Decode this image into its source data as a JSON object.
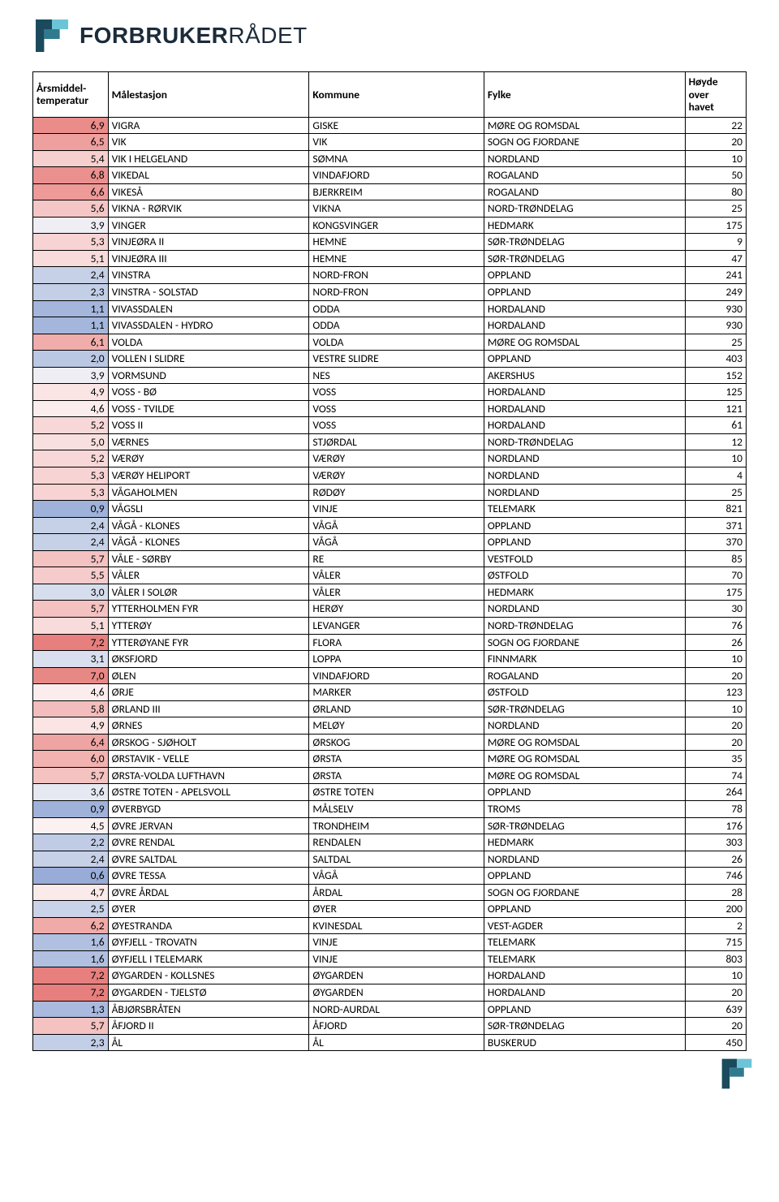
{
  "brand": {
    "name_bold": "FORBRUKER",
    "name_thin": "RÅDET",
    "mark_colors": {
      "dark": "#1b4a5c",
      "mid": "#2f7a8f",
      "light": "#6cc5d6"
    }
  },
  "table": {
    "headers": {
      "temp": "Årsmiddel-\ntemperatur",
      "station": "Målestasjon",
      "kommune": "Kommune",
      "fylke": "Fylke",
      "hoyde": "Høyde\nover\nhavet"
    },
    "rows": [
      {
        "temp": "6,9",
        "color": "#e98c8a",
        "station": "VIGRA",
        "kommune": "GISKE",
        "fylke": "MØRE OG ROMSDAL",
        "hoyde": "22"
      },
      {
        "temp": "6,5",
        "color": "#eea09e",
        "station": "VIK",
        "kommune": "VIK",
        "fylke": "SOGN OG FJORDANE",
        "hoyde": "20"
      },
      {
        "temp": "5,4",
        "color": "#f6cfcf",
        "station": "VIK I HELGELAND",
        "kommune": "SØMNA",
        "fylke": "NORDLAND",
        "hoyde": "10"
      },
      {
        "temp": "6,8",
        "color": "#ea918f",
        "station": "VIKEDAL",
        "kommune": "VINDAFJORD",
        "fylke": "ROGALAND",
        "hoyde": "50"
      },
      {
        "temp": "6,6",
        "color": "#ed9a98",
        "station": "VIKESÅ",
        "kommune": "BJERKREIM",
        "fylke": "ROGALAND",
        "hoyde": "80"
      },
      {
        "temp": "5,6",
        "color": "#f4c6c6",
        "station": "VIKNA - RØRVIK",
        "kommune": "VIKNA",
        "fylke": "NORD-TRØNDELAG",
        "hoyde": "25"
      },
      {
        "temp": "3,9",
        "color": "#f0eef5",
        "station": "VINGER",
        "kommune": "KONGSVINGER",
        "fylke": "HEDMARK",
        "hoyde": "175"
      },
      {
        "temp": "5,3",
        "color": "#f7d3d3",
        "station": "VINJEØRA II",
        "kommune": "HEMNE",
        "fylke": "SØR-TRØNDELAG",
        "hoyde": "9"
      },
      {
        "temp": "5,1",
        "color": "#f8dcdc",
        "station": "VINJEØRA III",
        "kommune": "HEMNE",
        "fylke": "SØR-TRØNDELAG",
        "hoyde": "47"
      },
      {
        "temp": "2,4",
        "color": "#c6d1e8",
        "station": "VINSTRA",
        "kommune": "NORD-FRON",
        "fylke": "OPPLAND",
        "hoyde": "241"
      },
      {
        "temp": "2,3",
        "color": "#c3cee7",
        "station": "VINSTRA - SOLSTAD",
        "kommune": "NORD-FRON",
        "fylke": "OPPLAND",
        "hoyde": "249"
      },
      {
        "temp": "1,1",
        "color": "#a4b6dc",
        "station": "VIVASSDALEN",
        "kommune": "ODDA",
        "fylke": "HORDALAND",
        "hoyde": "930"
      },
      {
        "temp": "1,1",
        "color": "#a4b6dc",
        "station": "VIVASSDALEN - HYDRO",
        "kommune": "ODDA",
        "fylke": "HORDALAND",
        "hoyde": "930"
      },
      {
        "temp": "6,1",
        "color": "#f0adab",
        "station": "VOLDA",
        "kommune": "VOLDA",
        "fylke": "MØRE OG ROMSDAL",
        "hoyde": "25"
      },
      {
        "temp": "2,0",
        "color": "#bbc8e4",
        "station": "VOLLEN I SLIDRE",
        "kommune": "VESTRE SLIDRE",
        "fylke": "OPPLAND",
        "hoyde": "403"
      },
      {
        "temp": "3,9",
        "color": "#f0eef5",
        "station": "VORMSUND",
        "kommune": "NES",
        "fylke": "AKERSHUS",
        "hoyde": "152"
      },
      {
        "temp": "4,9",
        "color": "#fae4e4",
        "station": "VOSS - BØ",
        "kommune": "VOSS",
        "fylke": "HORDALAND",
        "hoyde": "125"
      },
      {
        "temp": "4,6",
        "color": "#fbeded",
        "station": "VOSS - TVILDE",
        "kommune": "VOSS",
        "fylke": "HORDALAND",
        "hoyde": "121"
      },
      {
        "temp": "5,2",
        "color": "#f7d7d7",
        "station": "VOSS II",
        "kommune": "VOSS",
        "fylke": "HORDALAND",
        "hoyde": "61"
      },
      {
        "temp": "5,0",
        "color": "#f9e0e0",
        "station": "VÆRNES",
        "kommune": "STJØRDAL",
        "fylke": "NORD-TRØNDELAG",
        "hoyde": "12"
      },
      {
        "temp": "5,2",
        "color": "#f7d7d7",
        "station": "VÆRØY",
        "kommune": "VÆRØY",
        "fylke": "NORDLAND",
        "hoyde": "10"
      },
      {
        "temp": "5,3",
        "color": "#f7d3d3",
        "station": "VÆRØY HELIPORT",
        "kommune": "VÆRØY",
        "fylke": "NORDLAND",
        "hoyde": "4"
      },
      {
        "temp": "5,3",
        "color": "#f7d3d3",
        "station": "VÅGAHOLMEN",
        "kommune": "RØDØY",
        "fylke": "NORDLAND",
        "hoyde": "25"
      },
      {
        "temp": "0,9",
        "color": "#9fb2da",
        "station": "VÅGSLI",
        "kommune": "VINJE",
        "fylke": "TELEMARK",
        "hoyde": "821"
      },
      {
        "temp": "2,4",
        "color": "#c6d1e8",
        "station": "VÅGÅ - KLONES",
        "kommune": "VÅGÅ",
        "fylke": "OPPLAND",
        "hoyde": "371"
      },
      {
        "temp": "2,4",
        "color": "#c6d1e8",
        "station": "VÅGÅ - KLONES",
        "kommune": "VÅGÅ",
        "fylke": "OPPLAND",
        "hoyde": "370"
      },
      {
        "temp": "5,7",
        "color": "#f3c2c1",
        "station": "VÅLE - SØRBY",
        "kommune": "RE",
        "fylke": "VESTFOLD",
        "hoyde": "85"
      },
      {
        "temp": "5,5",
        "color": "#f5cbcb",
        "station": "VÅLER",
        "kommune": "VÅLER",
        "fylke": "ØSTFOLD",
        "hoyde": "70"
      },
      {
        "temp": "3,0",
        "color": "#d6dded",
        "station": "VÅLER I SOLØR",
        "kommune": "VÅLER",
        "fylke": "HEDMARK",
        "hoyde": "175"
      },
      {
        "temp": "5,7",
        "color": "#f3c2c1",
        "station": "YTTERHOLMEN FYR",
        "kommune": "HERØY",
        "fylke": "NORDLAND",
        "hoyde": "30"
      },
      {
        "temp": "5,1",
        "color": "#f8dcdc",
        "station": "YTTERØY",
        "kommune": "LEVANGER",
        "fylke": "NORD-TRØNDELAG",
        "hoyde": "76"
      },
      {
        "temp": "7,2",
        "color": "#e67f7d",
        "station": "YTTERØYANE FYR",
        "kommune": "FLORA",
        "fylke": "SOGN OG FJORDANE",
        "hoyde": "26"
      },
      {
        "temp": "3,1",
        "color": "#d9dfee",
        "station": "ØKSFJORD",
        "kommune": "LOPPA",
        "fylke": "FINNMARK",
        "hoyde": "10"
      },
      {
        "temp": "7,0",
        "color": "#e88885",
        "station": "ØLEN",
        "kommune": "VINDAFJORD",
        "fylke": "ROGALAND",
        "hoyde": "20"
      },
      {
        "temp": "4,6",
        "color": "#fbeded",
        "station": "ØRJE",
        "kommune": "MARKER",
        "fylke": "ØSTFOLD",
        "hoyde": "123"
      },
      {
        "temp": "5,8",
        "color": "#f2bdbc",
        "station": "ØRLAND III",
        "kommune": "ØRLAND",
        "fylke": "SØR-TRØNDELAG",
        "hoyde": "10"
      },
      {
        "temp": "4,9",
        "color": "#fae4e4",
        "station": "ØRNES",
        "kommune": "MELØY",
        "fylke": "NORDLAND",
        "hoyde": "20"
      },
      {
        "temp": "6,4",
        "color": "#eea4a2",
        "station": "ØRSKOG - SJØHOLT",
        "kommune": "ØRSKOG",
        "fylke": "MØRE OG ROMSDAL",
        "hoyde": "20"
      },
      {
        "temp": "6,0",
        "color": "#f1b2b0",
        "station": "ØRSTAVIK - VELLE",
        "kommune": "ØRSTA",
        "fylke": "MØRE OG ROMSDAL",
        "hoyde": "35"
      },
      {
        "temp": "5,7",
        "color": "#f3c2c1",
        "station": "ØRSTA-VOLDA LUFTHAVN",
        "kommune": "ØRSTA",
        "fylke": "MØRE OG ROMSDAL",
        "hoyde": "74"
      },
      {
        "temp": "3,6",
        "color": "#e7e9f2",
        "station": "ØSTRE TOTEN - APELSVOLL",
        "kommune": "ØSTRE TOTEN",
        "fylke": "OPPLAND",
        "hoyde": "264"
      },
      {
        "temp": "0,9",
        "color": "#9fb2da",
        "station": "ØVERBYGD",
        "kommune": "MÅLSELV",
        "fylke": "TROMS",
        "hoyde": "78"
      },
      {
        "temp": "4,5",
        "color": "#fcf1f1",
        "station": "ØVRE JERVAN",
        "kommune": "TRONDHEIM",
        "fylke": "SØR-TRØNDELAG",
        "hoyde": "176"
      },
      {
        "temp": "2,2",
        "color": "#c0cce6",
        "station": "ØVRE RENDAL",
        "kommune": "RENDALEN",
        "fylke": "HEDMARK",
        "hoyde": "303"
      },
      {
        "temp": "2,4",
        "color": "#c6d1e8",
        "station": "ØVRE SALTDAL",
        "kommune": "SALTDAL",
        "fylke": "NORDLAND",
        "hoyde": "26"
      },
      {
        "temp": "0,6",
        "color": "#98acd7",
        "station": "ØVRE TESSA",
        "kommune": "VÅGÅ",
        "fylke": "OPPLAND",
        "hoyde": "746"
      },
      {
        "temp": "4,7",
        "color": "#fbeaea",
        "station": "ØVRE ÅRDAL",
        "kommune": "ÅRDAL",
        "fylke": "SOGN OG FJORDANE",
        "hoyde": "28"
      },
      {
        "temp": "2,5",
        "color": "#c9d3e9",
        "station": "ØYER",
        "kommune": "ØYER",
        "fylke": "OPPLAND",
        "hoyde": "200"
      },
      {
        "temp": "6,2",
        "color": "#f0aaa8",
        "station": "ØYESTRANDA",
        "kommune": "KVINESDAL",
        "fylke": "VEST-AGDER",
        "hoyde": "2"
      },
      {
        "temp": "1,6",
        "color": "#b1c0e0",
        "station": "ØYFJELL - TROVATN",
        "kommune": "VINJE",
        "fylke": "TELEMARK",
        "hoyde": "715"
      },
      {
        "temp": "1,6",
        "color": "#b1c0e0",
        "station": "ØYFJELL I TELEMARK",
        "kommune": "VINJE",
        "fylke": "TELEMARK",
        "hoyde": "803"
      },
      {
        "temp": "7,2",
        "color": "#e67f7d",
        "station": "ØYGARDEN - KOLLSNES",
        "kommune": "ØYGARDEN",
        "fylke": "HORDALAND",
        "hoyde": "10"
      },
      {
        "temp": "7,2",
        "color": "#e67f7d",
        "station": "ØYGARDEN - TJELSTØ",
        "kommune": "ØYGARDEN",
        "fylke": "HORDALAND",
        "hoyde": "20"
      },
      {
        "temp": "1,3",
        "color": "#a9bade",
        "station": "ÅBJØRSBRÅTEN",
        "kommune": "NORD-AURDAL",
        "fylke": "OPPLAND",
        "hoyde": "639"
      },
      {
        "temp": "5,7",
        "color": "#f3c2c1",
        "station": "ÅFJORD II",
        "kommune": "ÅFJORD",
        "fylke": "SØR-TRØNDELAG",
        "hoyde": "20"
      },
      {
        "temp": "2,3",
        "color": "#c3cee7",
        "station": "ÅL",
        "kommune": "ÅL",
        "fylke": "BUSKERUD",
        "hoyde": "450"
      }
    ]
  }
}
